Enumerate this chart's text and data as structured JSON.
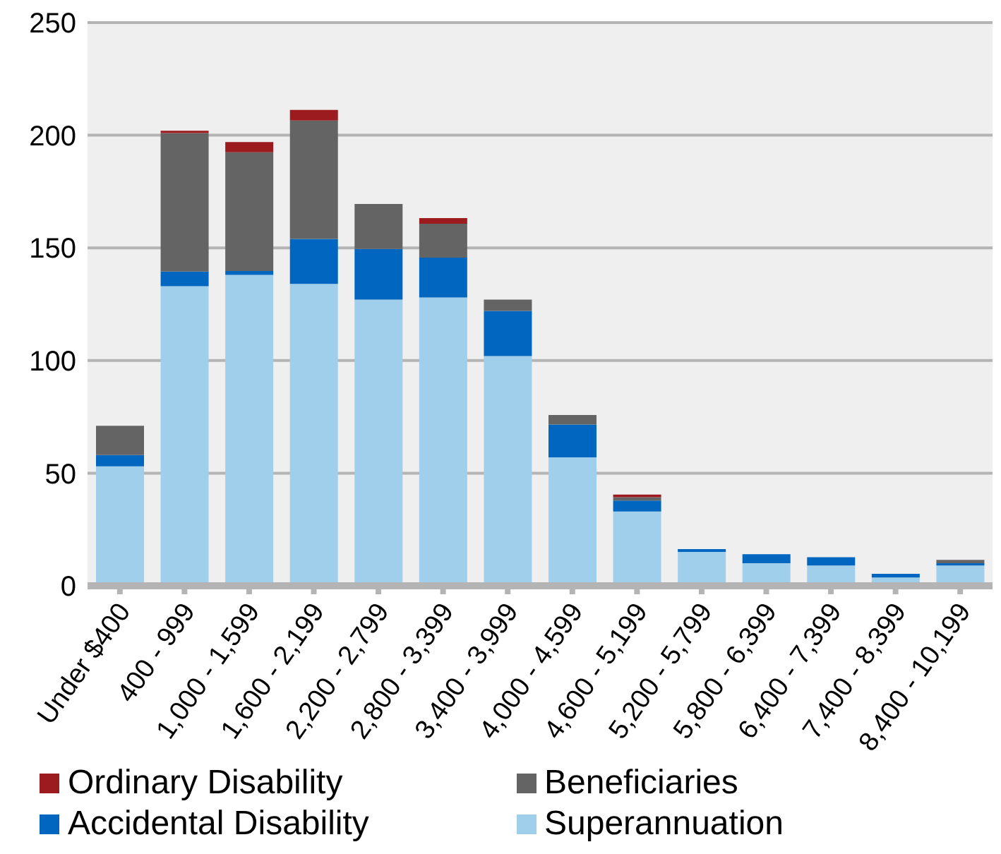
{
  "chart_data": {
    "type": "bar",
    "stacked": true,
    "categories": [
      "Under $400",
      "400 - 999",
      "1,000 - 1,599",
      "1,600 - 2,199",
      "2,200 - 2,799",
      "2,800 - 3,399",
      "3,400 - 3,999",
      "4,000 - 4,599",
      "4,600 - 5,199",
      "5,200 - 5,799",
      "5,800 - 6,399",
      "6,400 - 7,399",
      "7,400 - 8,399",
      "8,400 - 10,199"
    ],
    "series": [
      {
        "name": "Superannuation",
        "color": "#a0cfeb",
        "values": [
          53,
          133,
          138,
          134,
          127,
          128,
          102,
          57,
          33,
          15,
          10,
          9,
          3.7,
          9
        ]
      },
      {
        "name": "Accidental Disability",
        "color": "#0066c0",
        "values": [
          5,
          6.5,
          1.7,
          20,
          22.5,
          17.7,
          20,
          14.6,
          4.8,
          1.3,
          4,
          3.7,
          1.6,
          1
        ]
      },
      {
        "name": "Beneficiaries",
        "color": "#646464",
        "values": [
          13,
          61.5,
          52.7,
          52.5,
          20,
          15,
          5,
          4.2,
          1.5,
          0,
          0,
          0,
          0,
          1.5
        ]
      },
      {
        "name": "Ordinary Disability",
        "color": "#9b1b1f",
        "values": [
          0,
          1,
          4.6,
          4.7,
          0,
          2.5,
          0,
          0,
          1.2,
          0,
          0,
          0,
          0,
          0
        ]
      }
    ],
    "ylim": [
      0,
      250
    ],
    "yticks": [
      0,
      50,
      100,
      150,
      200,
      250
    ],
    "grid": "y",
    "legend": "bottom"
  }
}
